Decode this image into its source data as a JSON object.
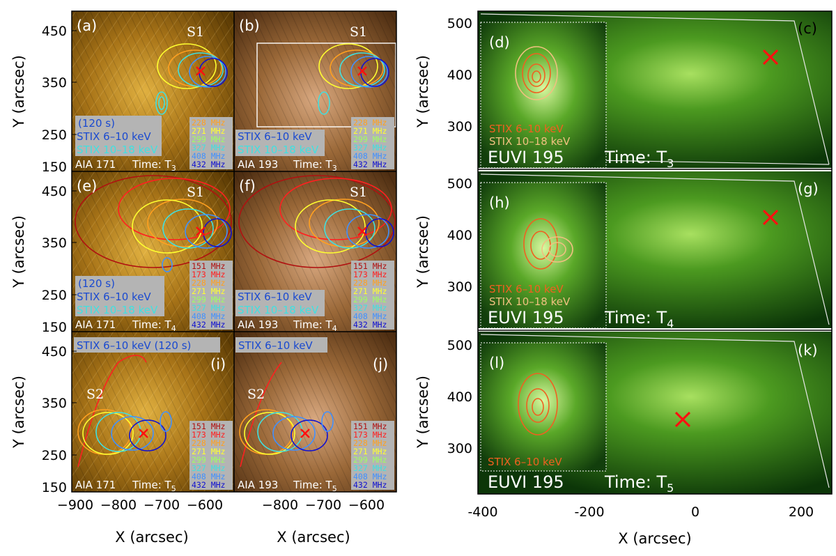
{
  "left_axes": {
    "y_ticks": [
      "450",
      "350",
      "250",
      "150"
    ],
    "x_ticks_col1": [
      "−900",
      "−800",
      "−700",
      "−600"
    ],
    "x_ticks_col2": [
      "−800",
      "−700",
      "−600"
    ],
    "y_label": "Y (arcsec)",
    "x_label": "X (arcsec)"
  },
  "right_axes": {
    "y_ticks": [
      "500",
      "400",
      "300"
    ],
    "x_ticks": [
      "-400",
      "-200",
      "0",
      "200"
    ],
    "y_label": "Y (arcsec)",
    "x_label": "X (arcsec)"
  },
  "panels": {
    "a": {
      "label": "(a)",
      "source": "S1",
      "box": [
        "(120 s)",
        "STIX 6–10 keV",
        "STIX 10–18 keV"
      ],
      "instrument": "AIA 171",
      "time": "Time: T",
      "time_sub": "3"
    },
    "b": {
      "label": "(b)",
      "source": "S1",
      "box": [
        "STIX 6–10 keV",
        "STIX 10–18 keV"
      ],
      "instrument": "AIA 193",
      "time": "Time: T",
      "time_sub": "3"
    },
    "e": {
      "label": "(e)",
      "source": "S1",
      "box": [
        "(120 s)",
        "STIX 6–10 keV",
        "STIX 10–18 keV"
      ],
      "instrument": "AIA 171",
      "time": "Time: T",
      "time_sub": "4"
    },
    "f": {
      "label": "(f)",
      "source": "S1",
      "box": [
        "STIX 6–10 keV",
        "STIX 10–18 keV"
      ],
      "instrument": "AIA 193",
      "time": "Time: T",
      "time_sub": "4"
    },
    "i": {
      "label": "(i)",
      "source": "S2",
      "box": [
        "STIX 6–10 keV (120 s)"
      ],
      "instrument": "AIA 171",
      "time": "Time: T",
      "time_sub": "5"
    },
    "j": {
      "label": "(j)",
      "source": "S2",
      "box": [
        "STIX 6–10 keV"
      ],
      "instrument": "AIA 193",
      "time": "Time: T",
      "time_sub": "5"
    },
    "c": {
      "label": "(c)",
      "inset_label": "(d)",
      "stix": [
        "STIX 6–10 keV",
        "STIX 10–18 keV"
      ],
      "instrument": "EUVI 195",
      "time": "Time: T",
      "time_sub": "3"
    },
    "g": {
      "label": "(g)",
      "inset_label": "(h)",
      "stix": [
        "STIX 6–10 keV",
        "STIX 10–18 keV"
      ],
      "instrument": "EUVI 195",
      "time": "Time: T",
      "time_sub": "4"
    },
    "k": {
      "label": "(k)",
      "inset_label": "(l)",
      "stix": [
        "STIX 6–10 keV"
      ],
      "instrument": "EUVI 195",
      "time": "Time: T",
      "time_sub": "5"
    }
  },
  "freq_legends": {
    "row1": [
      "228 MHz",
      "271 MHz",
      "299 MHz",
      "327 MHz",
      "408 MHz",
      "432 MHz"
    ],
    "row2": [
      "151 MHz",
      "173 MHz",
      "228 MHz",
      "271 MHz",
      "299 MHz",
      "327 MHz",
      "408 MHz",
      "432 MHz"
    ],
    "row3": [
      "151 MHz",
      "173 MHz",
      "228 MHz",
      "271 MHz",
      "299 MHz",
      "327 MHz",
      "408 MHz",
      "432 MHz"
    ]
  },
  "freq_colors": {
    "151 MHz": "#b01010",
    "173 MHz": "#ff2020",
    "228 MHz": "#ffa020",
    "271 MHz": "#ffff30",
    "299 MHz": "#a0ff60",
    "327 MHz": "#40e0e0",
    "408 MHz": "#4090ff",
    "432 MHz": "#1010d0"
  },
  "colors": {
    "aia171_bg": "#7a5206",
    "aia193_bg": "#6e4620",
    "euvi_bg": "#0e3a0a",
    "box_bg": "#b4b4b4",
    "stix_low_box": "#1a4ad0",
    "stix_high_box": "#40e0e0",
    "stix_low_euvi": "#f06020",
    "stix_high_euvi": "#f0c080",
    "cross": "#ff1010"
  }
}
